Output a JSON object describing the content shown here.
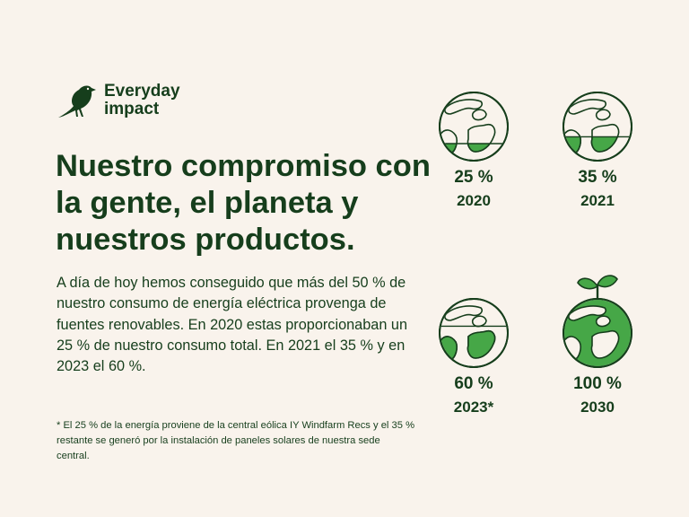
{
  "logo": {
    "icon": "bird-icon",
    "line1": "Everyday",
    "line2": "impact"
  },
  "headline": "Nuestro compromiso con la gente, el planeta y nuestros productos.",
  "body": "A día de hoy hemos conseguido que más del 50 % de nuestro consumo de energía eléctrica provenga de fuentes renovables. En 2020 estas proporcionaban un 25 % de nuestro consumo total. En 2021 el 35 % y en 2023 el 60 %.",
  "footnote": "* El 25 % de la energía proviene de la central eólica IY Windfarm Recs y el 35 % restante se generó por la instalación de paneles solares de nuestra sede central.",
  "colors": {
    "background": "#f9f3ec",
    "dark_green": "#163e1c",
    "fill_green": "#46a747"
  },
  "globes": [
    {
      "percent": "25 %",
      "year": "2020",
      "fill_fraction": 0.25,
      "icon": "globe-icon"
    },
    {
      "percent": "35 %",
      "year": "2021",
      "fill_fraction": 0.35,
      "icon": "globe-icon"
    },
    {
      "percent": "60 %",
      "year": "2023*",
      "fill_fraction": 0.6,
      "icon": "globe-icon"
    },
    {
      "percent": "100 %",
      "year": "2030",
      "fill_fraction": 1.0,
      "icon": "globe-sprout-icon"
    }
  ]
}
